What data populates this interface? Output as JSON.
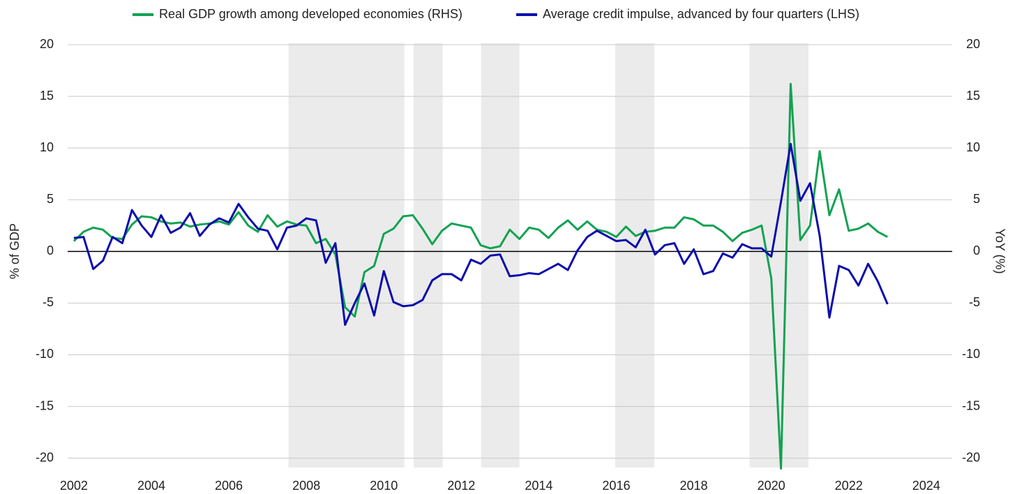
{
  "chart_data": {
    "type": "line",
    "y_label": "% of GDP",
    "y2_label": "YoY (%)",
    "x": [
      2002,
      2002.25,
      2002.5,
      2002.75,
      2003,
      2003.25,
      2003.5,
      2003.75,
      2004,
      2004.25,
      2004.5,
      2004.75,
      2005,
      2005.25,
      2005.5,
      2005.75,
      2006,
      2006.25,
      2006.5,
      2006.75,
      2007,
      2007.25,
      2007.5,
      2007.75,
      2008,
      2008.25,
      2008.5,
      2008.75,
      2009,
      2009.25,
      2009.5,
      2009.75,
      2010,
      2010.25,
      2010.5,
      2010.75,
      2011,
      2011.25,
      2011.5,
      2011.75,
      2012,
      2012.25,
      2012.5,
      2012.75,
      2013,
      2013.25,
      2013.5,
      2013.75,
      2014,
      2014.25,
      2014.5,
      2014.75,
      2015,
      2015.25,
      2015.5,
      2015.75,
      2016,
      2016.25,
      2016.5,
      2016.75,
      2017,
      2017.25,
      2017.5,
      2017.75,
      2018,
      2018.25,
      2018.5,
      2018.75,
      2019,
      2019.25,
      2019.5,
      2019.75,
      2020,
      2020.25,
      2020.5,
      2020.75,
      2021,
      2021.25,
      2021.5,
      2021.75,
      2022,
      2022.25,
      2022.5,
      2022.75,
      2023
    ],
    "series": [
      {
        "name": "Real GDP growth among developed economies (RHS)",
        "color": "#13a252",
        "axis": "y2",
        "values": [
          1.0,
          1.9,
          2.3,
          2.1,
          1.3,
          1.2,
          2.6,
          3.4,
          3.3,
          2.9,
          2.7,
          2.8,
          2.4,
          2.6,
          2.7,
          2.9,
          2.6,
          3.8,
          2.5,
          1.9,
          3.5,
          2.4,
          2.9,
          2.6,
          2.5,
          0.8,
          1.2,
          -0.3,
          -5.4,
          -6.3,
          -2.0,
          -1.4,
          1.7,
          2.2,
          3.4,
          3.5,
          2.2,
          0.7,
          2.0,
          2.7,
          2.5,
          2.3,
          0.6,
          0.3,
          0.5,
          2.1,
          1.2,
          2.3,
          2.1,
          1.3,
          2.3,
          3.0,
          2.1,
          2.9,
          2.1,
          1.9,
          1.4,
          2.4,
          1.5,
          1.9,
          2.0,
          2.3,
          2.3,
          3.3,
          3.1,
          2.5,
          2.5,
          1.9,
          1.0,
          1.8,
          2.1,
          2.5,
          -2.6,
          -21,
          16.2,
          1.1,
          2.5,
          9.7,
          3.5,
          6.0,
          2.0,
          2.2,
          2.7,
          1.9,
          1.4
        ]
      },
      {
        "name": "Average credit impulse, advanced by four quarters (LHS)",
        "color": "#0c0cab",
        "values": [
          1.3,
          1.4,
          -1.7,
          -0.9,
          1.4,
          0.8,
          4.0,
          2.5,
          1.4,
          3.5,
          1.8,
          2.3,
          3.7,
          1.5,
          2.6,
          3.2,
          2.8,
          4.6,
          3.3,
          2.2,
          2.0,
          0.2,
          2.3,
          2.5,
          3.2,
          3.0,
          -1.1,
          0.8,
          -7.1,
          -5.0,
          -3.1,
          -6.2,
          -1.9,
          -4.9,
          -5.3,
          -5.2,
          -4.7,
          -2.8,
          -2.2,
          -2.2,
          -2.8,
          -0.8,
          -1.2,
          -0.4,
          -0.3,
          -2.4,
          -2.3,
          -2.1,
          -2.2,
          -1.7,
          -1.2,
          -1.8,
          0.1,
          1.4,
          2.0,
          1.5,
          1.0,
          1.1,
          0.4,
          2.1,
          -0.3,
          0.6,
          0.8,
          -1.2,
          0.2,
          -2.2,
          -1.9,
          -0.2,
          -0.6,
          0.7,
          0.3,
          0.3,
          -0.5,
          4.8,
          10.4,
          4.9,
          6.6,
          1.5,
          -6.4,
          -1.4,
          -1.8,
          -3.3,
          -1.2,
          -2.9,
          -5.1
        ]
      }
    ],
    "shaded_periods": [
      [
        2007.54,
        2010.53
      ],
      [
        2010.77,
        2011.52
      ],
      [
        2012.51,
        2013.5
      ],
      [
        2015.97,
        2016.98
      ],
      [
        2019.44,
        2020.96
      ]
    ],
    "xlim": [
      2001.84,
      2024.67
    ],
    "xticks": [
      2002,
      2004,
      2006,
      2008,
      2010,
      2012,
      2014,
      2016,
      2018,
      2020,
      2022,
      2024
    ],
    "ylim": [
      -20.9,
      20
    ],
    "yticks": [
      20,
      15,
      10,
      5,
      0,
      -5,
      -10,
      -15,
      -20
    ],
    "y2lim": [
      -20.9,
      20
    ],
    "y2ticks": [
      20,
      15,
      10,
      5,
      0,
      -5,
      -10,
      -15,
      -20
    ],
    "grid": true,
    "legend": "top"
  }
}
